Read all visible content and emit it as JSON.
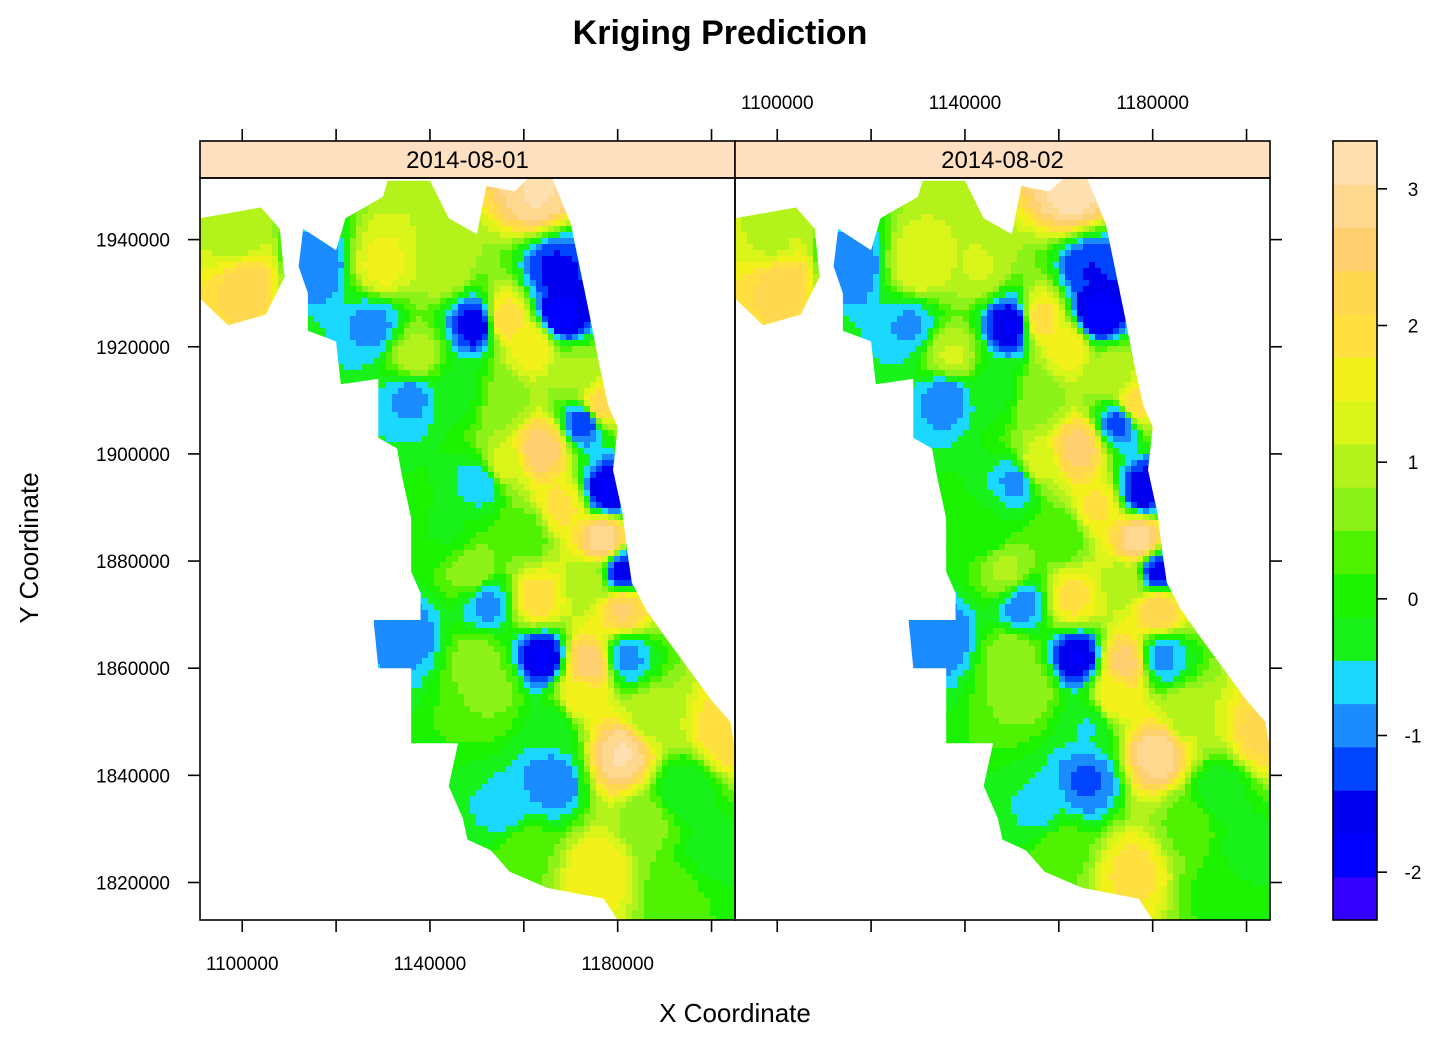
{
  "chart_data": {
    "type": "heatmap",
    "title": "Kriging Prediction",
    "xlabel": "X Coordinate",
    "ylabel": "Y Coordinate",
    "panels": [
      {
        "label": "2014-08-01"
      },
      {
        "label": "2014-08-02"
      }
    ],
    "xlim": [
      1091000,
      1205000
    ],
    "ylim": [
      1813000,
      1951500
    ],
    "x_ticks": [
      1100000,
      1120000,
      1140000,
      1160000,
      1180000,
      1200000
    ],
    "x_tick_labels": [
      "1100000",
      "1140000",
      "1180000"
    ],
    "y_ticks": [
      1820000,
      1840000,
      1860000,
      1880000,
      1900000,
      1920000,
      1940000
    ],
    "y_tick_labels": [
      "1820000",
      "1840000",
      "1860000",
      "1880000",
      "1900000",
      "1920000",
      "1940000"
    ],
    "colorkey": {
      "range": [
        -2.35,
        3.35
      ],
      "tick_values": [
        -2,
        -1,
        0,
        1,
        2,
        3
      ],
      "tick_labels": [
        "-2",
        "-1",
        "0",
        "1",
        "2",
        "3"
      ],
      "colors": [
        "#3300ff",
        "#0000ff",
        "#0000ee",
        "#0044ff",
        "#1a8cff",
        "#1ad8ff",
        "#19f21a",
        "#1af200",
        "#4ff200",
        "#8cf21a",
        "#b3f21a",
        "#d9f51a",
        "#f2f21a",
        "#ffe040",
        "#ffd850",
        "#ffd070",
        "#ffd890",
        "#ffe0b0"
      ]
    },
    "hotspots": [
      {
        "x": 1101000,
        "y": 1932000,
        "v": 2.2
      },
      {
        "x": 1099000,
        "y": 1940000,
        "v": 0.9
      },
      {
        "x": 1116000,
        "y": 1935000,
        "v": -1.1
      },
      {
        "x": 1130000,
        "y": 1935000,
        "v": 1.5
      },
      {
        "x": 1128000,
        "y": 1924000,
        "v": -0.9
      },
      {
        "x": 1143000,
        "y": 1935000,
        "v": 1.0
      },
      {
        "x": 1150000,
        "y": 1924000,
        "v": -1.7
      },
      {
        "x": 1156000,
        "y": 1925000,
        "v": 2.0
      },
      {
        "x": 1163000,
        "y": 1949000,
        "v": 3.0
      },
      {
        "x": 1167000,
        "y": 1934000,
        "v": -1.5
      },
      {
        "x": 1168000,
        "y": 1926000,
        "v": -1.9
      },
      {
        "x": 1162000,
        "y": 1920000,
        "v": 1.6
      },
      {
        "x": 1137000,
        "y": 1918000,
        "v": 1.0
      },
      {
        "x": 1146000,
        "y": 1912000,
        "v": -0.3
      },
      {
        "x": 1136000,
        "y": 1911000,
        "v": -0.9
      },
      {
        "x": 1156000,
        "y": 1910000,
        "v": 0.6
      },
      {
        "x": 1171000,
        "y": 1915000,
        "v": 0.8
      },
      {
        "x": 1176000,
        "y": 1909000,
        "v": 2.1
      },
      {
        "x": 1164000,
        "y": 1901000,
        "v": 2.6
      },
      {
        "x": 1173000,
        "y": 1906000,
        "v": -1.4
      },
      {
        "x": 1155000,
        "y": 1898000,
        "v": 1.2
      },
      {
        "x": 1151000,
        "y": 1895000,
        "v": -0.8
      },
      {
        "x": 1168000,
        "y": 1890000,
        "v": 1.8
      },
      {
        "x": 1178000,
        "y": 1893000,
        "v": -1.8
      },
      {
        "x": 1177000,
        "y": 1884000,
        "v": 2.9
      },
      {
        "x": 1161000,
        "y": 1885000,
        "v": 0.3
      },
      {
        "x": 1144000,
        "y": 1886000,
        "v": -0.2
      },
      {
        "x": 1149000,
        "y": 1878000,
        "v": 0.7
      },
      {
        "x": 1152000,
        "y": 1872000,
        "v": -0.9
      },
      {
        "x": 1163000,
        "y": 1873000,
        "v": 1.9
      },
      {
        "x": 1174000,
        "y": 1876000,
        "v": 0.9
      },
      {
        "x": 1181000,
        "y": 1878000,
        "v": -1.6
      },
      {
        "x": 1181000,
        "y": 1871000,
        "v": 2.4
      },
      {
        "x": 1136000,
        "y": 1866000,
        "v": -0.95
      },
      {
        "x": 1150000,
        "y": 1862000,
        "v": 0.6
      },
      {
        "x": 1164000,
        "y": 1862000,
        "v": -1.8
      },
      {
        "x": 1174000,
        "y": 1861000,
        "v": 2.6
      },
      {
        "x": 1182000,
        "y": 1862000,
        "v": -0.9
      },
      {
        "x": 1154000,
        "y": 1856000,
        "v": 0.5
      },
      {
        "x": 1172000,
        "y": 1855000,
        "v": 1.6
      },
      {
        "x": 1166000,
        "y": 1849000,
        "v": -0.4
      },
      {
        "x": 1187000,
        "y": 1851000,
        "v": 0.9
      },
      {
        "x": 1203000,
        "y": 1848000,
        "v": 2.0
      },
      {
        "x": 1181000,
        "y": 1844000,
        "v": 3.0
      },
      {
        "x": 1166000,
        "y": 1839000,
        "v": -1.1
      },
      {
        "x": 1194000,
        "y": 1837000,
        "v": -0.5
      },
      {
        "x": 1156000,
        "y": 1833000,
        "v": -0.6
      },
      {
        "x": 1187000,
        "y": 1831000,
        "v": 0.5
      },
      {
        "x": 1200000,
        "y": 1826000,
        "v": -0.3
      },
      {
        "x": 1176000,
        "y": 1822000,
        "v": 1.7
      },
      {
        "x": 1160000,
        "y": 1826000,
        "v": 0.4
      },
      {
        "x": 1193000,
        "y": 1818000,
        "v": 0.2
      }
    ]
  }
}
